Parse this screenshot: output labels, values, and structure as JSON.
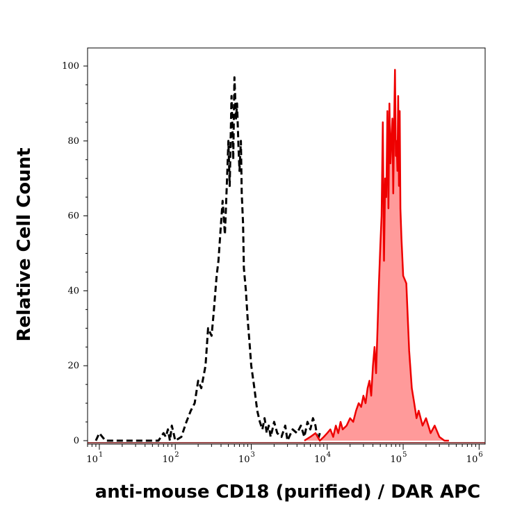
{
  "chart_data": {
    "type": "area",
    "title": "",
    "xlabel": "anti-mouse CD18 (purified) / DAR APC",
    "ylabel": "Relative Cell Count",
    "x_scale": "log",
    "xlim": [
      7,
      1200000
    ],
    "ylim": [
      0,
      105
    ],
    "x_ticks": [
      {
        "value": 10,
        "base": "10",
        "exp": "1"
      },
      {
        "value": 100,
        "base": "10",
        "exp": "2"
      },
      {
        "value": 1000,
        "base": "10",
        "exp": "3"
      },
      {
        "value": 10000,
        "base": "10",
        "exp": "4"
      },
      {
        "value": 100000,
        "base": "10",
        "exp": "5"
      },
      {
        "value": 1000000,
        "base": "10",
        "exp": "6"
      }
    ],
    "y_ticks": [
      "0",
      "20",
      "40",
      "60",
      "80",
      "100"
    ],
    "grid": false,
    "series": [
      {
        "style": "dashed",
        "color": "#000000",
        "fill": "none",
        "x": [
          9,
          10,
          12,
          60,
          70,
          75,
          80,
          85,
          90,
          100,
          120,
          140,
          160,
          180,
          200,
          220,
          250,
          270,
          300,
          320,
          350,
          370,
          400,
          420,
          450,
          480,
          500,
          520,
          550,
          580,
          600,
          630,
          650,
          680,
          700,
          730,
          750,
          780,
          800,
          850,
          900,
          950,
          1000,
          1100,
          1200,
          1300,
          1400,
          1500,
          1600,
          1700,
          1800,
          1900,
          2000,
          2200,
          2500,
          2800,
          3000,
          3500,
          4000,
          4500,
          5000,
          5500,
          6000,
          6500,
          7000,
          7500,
          8000
        ],
        "y": [
          0,
          2,
          0,
          0,
          2,
          1,
          3,
          0,
          4,
          0,
          1,
          5,
          8,
          10,
          16,
          14,
          20,
          30,
          28,
          34,
          44,
          48,
          58,
          64,
          55,
          70,
          80,
          68,
          92,
          75,
          97,
          86,
          90,
          78,
          72,
          80,
          66,
          58,
          46,
          40,
          32,
          26,
          20,
          14,
          8,
          5,
          3,
          6,
          2,
          4,
          1,
          3,
          5,
          2,
          1,
          4,
          0,
          3,
          2,
          4,
          1,
          5,
          3,
          6,
          4,
          0,
          2
        ]
      },
      {
        "style": "solid",
        "color": "#ee0000",
        "fill": "#ff9a9a",
        "x": [
          5000,
          6000,
          7000,
          8000,
          9000,
          10000,
          11000,
          12000,
          13000,
          14000,
          15000,
          16000,
          18000,
          20000,
          22000,
          24000,
          26000,
          28000,
          30000,
          32000,
          34000,
          36000,
          38000,
          40000,
          42000,
          44000,
          46000,
          48000,
          50000,
          52000,
          54000,
          56000,
          58000,
          60000,
          62000,
          64000,
          66000,
          68000,
          70000,
          72000,
          74000,
          76000,
          78000,
          80000,
          82000,
          84000,
          86000,
          88000,
          90000,
          92000,
          95000,
          100000,
          110000,
          120000,
          130000,
          140000,
          150000,
          160000,
          180000,
          200000,
          230000,
          260000,
          300000,
          350000,
          400000
        ],
        "y": [
          0,
          1,
          2,
          0,
          1,
          2,
          3,
          1,
          4,
          2,
          5,
          3,
          4,
          6,
          5,
          8,
          10,
          9,
          12,
          10,
          14,
          16,
          12,
          20,
          25,
          18,
          30,
          42,
          52,
          60,
          85,
          48,
          70,
          65,
          88,
          62,
          90,
          74,
          80,
          86,
          66,
          84,
          99,
          76,
          80,
          72,
          92,
          68,
          88,
          62,
          54,
          44,
          42,
          24,
          14,
          10,
          6,
          8,
          4,
          6,
          2,
          4,
          1,
          0,
          0
        ]
      }
    ]
  }
}
